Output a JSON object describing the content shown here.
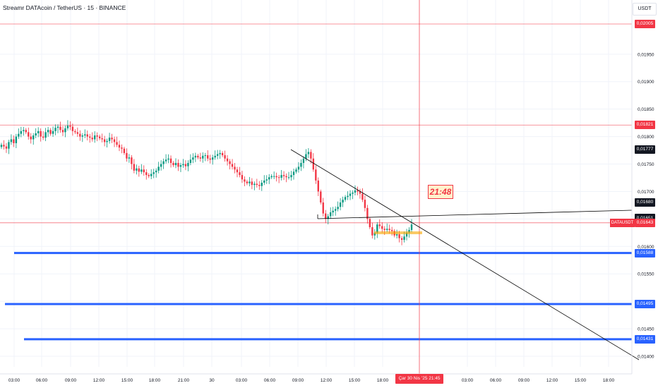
{
  "header": {
    "title": "Streamr DATAcoin / TetherUS · 15 · BINANCE",
    "currency_button": "USDT"
  },
  "colors": {
    "up": "#089981",
    "down": "#f23645",
    "blue_level": "#2962ff",
    "trend": "#000000"
  },
  "price_axis_ticks": [
    "0,01950",
    "0,01900",
    "0,01850",
    "0,01800",
    "0,01750",
    "0,01700",
    "0,01600",
    "0,01550",
    "0,01450",
    "0,01400"
  ],
  "price_labels": [
    {
      "text": "0,02005",
      "kind": "red",
      "price": 0.02005
    },
    {
      "text": "0,01821",
      "kind": "red",
      "price": 0.01821
    },
    {
      "text": "0,01777",
      "kind": "black",
      "price": 0.01777
    },
    {
      "text": "0,01680",
      "kind": "black",
      "price": 0.0168
    },
    {
      "text": "0,01652",
      "kind": "black",
      "price": 0.01652
    },
    {
      "text": "0,01651",
      "kind": "black",
      "price": 0.01651
    },
    {
      "text": "0,01643",
      "kind": "red",
      "price": 0.01643
    },
    {
      "text": "0,01588",
      "kind": "blue",
      "price": 0.01588
    },
    {
      "text": "0,01495",
      "kind": "blue",
      "price": 0.01495
    },
    {
      "text": "0,01431",
      "kind": "blue",
      "price": 0.01431
    }
  ],
  "symbol_label": "DATAUSDT",
  "time_axis_ticks": [
    "03:00",
    "06:00",
    "09:00",
    "12:00",
    "15:00",
    "18:00",
    "21:00",
    "30",
    "03:00",
    "06:00",
    "09:00",
    "12:00",
    "15:00",
    "18:00",
    "03:00",
    "06:00",
    "09:00",
    "12:00",
    "15:00",
    "18:00"
  ],
  "crosshair_date": "Çar 30 Nis '25   21:45",
  "countdown": "21:48",
  "chart_data": {
    "type": "candlestick",
    "ylim": [
      0.0138,
      0.0204
    ],
    "horizontal_levels": [
      0.02005,
      0.01821,
      0.01643,
      0.01588,
      0.01495,
      0.01431
    ],
    "close_series": [
      0.01785,
      0.01782,
      0.01778,
      0.0179,
      0.01795,
      0.01788,
      0.018,
      0.01805,
      0.0181,
      0.01812,
      0.01808,
      0.018,
      0.01795,
      0.01802,
      0.01806,
      0.0181,
      0.018,
      0.01798,
      0.01808,
      0.01812,
      0.01805,
      0.0181,
      0.01816,
      0.01818,
      0.01812,
      0.01808,
      0.01815,
      0.0182,
      0.01818,
      0.0181,
      0.01808,
      0.01805,
      0.018,
      0.01802,
      0.01804,
      0.018,
      0.01798,
      0.01795,
      0.01802,
      0.018,
      0.01797,
      0.01795,
      0.0179,
      0.01792,
      0.01798,
      0.01795,
      0.0179,
      0.01785,
      0.0178,
      0.01778,
      0.0177,
      0.0176,
      0.01762,
      0.0175,
      0.01738,
      0.01742,
      0.01736,
      0.0174,
      0.01735,
      0.0173,
      0.01728,
      0.01732,
      0.01735,
      0.01738,
      0.01745,
      0.0175,
      0.01755,
      0.01758,
      0.0176,
      0.01752,
      0.01748,
      0.01752,
      0.01745,
      0.01748,
      0.0175,
      0.01746,
      0.01752,
      0.01758,
      0.01762,
      0.01765,
      0.01762,
      0.0176,
      0.01765,
      0.01766,
      0.0176,
      0.01758,
      0.01762,
      0.01765,
      0.01768,
      0.0177,
      0.01766,
      0.0176,
      0.01755,
      0.0175,
      0.01745,
      0.0174,
      0.01735,
      0.0173,
      0.01722,
      0.01718,
      0.01715,
      0.01718,
      0.01712,
      0.01714,
      0.01712,
      0.0171,
      0.01716,
      0.0172,
      0.01722,
      0.01726,
      0.01728,
      0.01728,
      0.01726,
      0.01725,
      0.0173,
      0.01728,
      0.01726,
      0.01726,
      0.0173,
      0.01736,
      0.0174,
      0.01745,
      0.01752,
      0.0176,
      0.01768,
      0.01772,
      0.0176,
      0.0174,
      0.0172,
      0.017,
      0.0168,
      0.0166,
      0.0165,
      0.01655,
      0.01662,
      0.01665,
      0.01668,
      0.01672,
      0.0168,
      0.01685,
      0.0169,
      0.01692,
      0.01696,
      0.01698,
      0.01702,
      0.017,
      0.01696,
      0.01685,
      0.0167,
      0.0165,
      0.01635,
      0.0162,
      0.01625,
      0.0164,
      0.01637,
      0.01632,
      0.0163,
      0.01632,
      0.0163,
      0.01628,
      0.0162,
      0.01622,
      0.01615,
      0.01612,
      0.01618,
      0.01625,
      0.0163,
      0.0164
    ]
  }
}
